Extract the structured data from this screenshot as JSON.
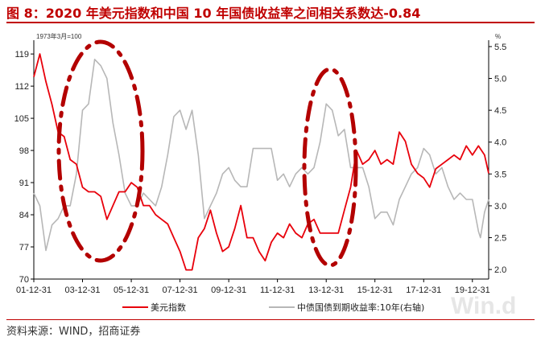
{
  "title": "图 8：2020 年美元指数和中国 10 年国债收益率之间相关系数达-0.84",
  "source": "资料来源：WIND，招商证券",
  "watermark": "Win.d",
  "colors": {
    "title": "#c00000",
    "dxy": "#e8000b",
    "bond": "#b7b7b7",
    "ellipse": "#b30000"
  },
  "chart_data": {
    "type": "line",
    "left_axis": {
      "note": "1973年3月=100",
      "ticks": [
        70,
        77,
        84,
        91,
        98,
        105,
        112,
        119
      ],
      "range": [
        70,
        122
      ]
    },
    "right_axis": {
      "unit": "%",
      "ticks": [
        2.0,
        2.5,
        3.0,
        3.5,
        4.0,
        4.5,
        5.0,
        5.5
      ],
      "range": [
        1.85,
        5.6
      ]
    },
    "x_ticks": [
      "01-12-31",
      "03-12-31",
      "05-12-31",
      "07-12-31",
      "09-12-31",
      "11-12-31",
      "13-12-31",
      "15-12-31",
      "17-12-31",
      "19-12-31"
    ],
    "x_range": [
      "2001-12-31",
      "2020-08-31"
    ],
    "series": [
      {
        "name": "美元指数",
        "axis": "left",
        "points": [
          [
            "2001-12-31",
            114
          ],
          [
            "2002-03-31",
            119
          ],
          [
            "2002-06-30",
            113
          ],
          [
            "2002-09-30",
            108
          ],
          [
            "2002-12-31",
            102
          ],
          [
            "2003-03-31",
            101
          ],
          [
            "2003-06-30",
            96
          ],
          [
            "2003-09-30",
            95
          ],
          [
            "2003-12-31",
            90
          ],
          [
            "2004-03-31",
            89
          ],
          [
            "2004-06-30",
            89
          ],
          [
            "2004-09-30",
            88
          ],
          [
            "2004-12-31",
            83
          ],
          [
            "2005-03-31",
            86
          ],
          [
            "2005-06-30",
            89
          ],
          [
            "2005-09-30",
            89
          ],
          [
            "2005-12-31",
            91
          ],
          [
            "2006-03-31",
            90
          ],
          [
            "2006-06-30",
            86
          ],
          [
            "2006-09-30",
            86
          ],
          [
            "2006-12-31",
            84
          ],
          [
            "2007-03-31",
            83
          ],
          [
            "2007-06-30",
            82
          ],
          [
            "2007-09-30",
            79
          ],
          [
            "2007-12-31",
            76
          ],
          [
            "2008-03-31",
            72
          ],
          [
            "2008-06-30",
            72
          ],
          [
            "2008-09-30",
            79
          ],
          [
            "2008-12-31",
            81
          ],
          [
            "2009-03-31",
            85
          ],
          [
            "2009-06-30",
            80
          ],
          [
            "2009-09-30",
            76
          ],
          [
            "2009-12-31",
            77
          ],
          [
            "2010-03-31",
            81
          ],
          [
            "2010-06-30",
            86
          ],
          [
            "2010-09-30",
            79
          ],
          [
            "2010-12-31",
            79
          ],
          [
            "2011-03-31",
            76
          ],
          [
            "2011-06-30",
            74
          ],
          [
            "2011-09-30",
            78
          ],
          [
            "2011-12-31",
            80
          ],
          [
            "2012-03-31",
            79
          ],
          [
            "2012-06-30",
            82
          ],
          [
            "2012-09-30",
            80
          ],
          [
            "2012-12-31",
            79
          ],
          [
            "2013-03-31",
            82
          ],
          [
            "2013-06-30",
            83
          ],
          [
            "2013-09-30",
            80
          ],
          [
            "2013-12-31",
            80
          ],
          [
            "2014-03-31",
            80
          ],
          [
            "2014-06-30",
            80
          ],
          [
            "2014-09-30",
            85
          ],
          [
            "2014-12-31",
            90
          ],
          [
            "2015-03-31",
            98
          ],
          [
            "2015-06-30",
            95
          ],
          [
            "2015-09-30",
            96
          ],
          [
            "2015-12-31",
            98
          ],
          [
            "2016-03-31",
            95
          ],
          [
            "2016-06-30",
            96
          ],
          [
            "2016-09-30",
            95
          ],
          [
            "2016-12-31",
            102
          ],
          [
            "2017-03-31",
            100
          ],
          [
            "2017-06-30",
            95
          ],
          [
            "2017-09-30",
            93
          ],
          [
            "2017-12-31",
            92
          ],
          [
            "2018-03-31",
            90
          ],
          [
            "2018-06-30",
            94
          ],
          [
            "2018-09-30",
            95
          ],
          [
            "2018-12-31",
            96
          ],
          [
            "2019-03-31",
            97
          ],
          [
            "2019-06-30",
            96
          ],
          [
            "2019-09-30",
            99
          ],
          [
            "2019-12-31",
            97
          ],
          [
            "2020-03-31",
            99
          ],
          [
            "2020-06-30",
            97
          ],
          [
            "2020-08-31",
            93
          ]
        ]
      },
      {
        "name": "中债国债到期收益率:10年(右轴)",
        "axis": "right",
        "points": [
          [
            "2001-12-31",
            3.2
          ],
          [
            "2002-03-31",
            3.0
          ],
          [
            "2002-06-30",
            2.3
          ],
          [
            "2002-09-30",
            2.7
          ],
          [
            "2002-12-31",
            2.8
          ],
          [
            "2003-03-31",
            3.0
          ],
          [
            "2003-06-30",
            3.0
          ],
          [
            "2003-09-30",
            3.5
          ],
          [
            "2003-12-31",
            4.5
          ],
          [
            "2004-03-31",
            4.6
          ],
          [
            "2004-06-30",
            5.3
          ],
          [
            "2004-09-30",
            5.2
          ],
          [
            "2004-12-31",
            5.0
          ],
          [
            "2005-03-31",
            4.3
          ],
          [
            "2005-06-30",
            3.8
          ],
          [
            "2005-09-30",
            3.2
          ],
          [
            "2005-12-31",
            3.0
          ],
          [
            "2006-03-31",
            3.0
          ],
          [
            "2006-06-30",
            3.2
          ],
          [
            "2006-09-30",
            3.1
          ],
          [
            "2006-12-31",
            3.0
          ],
          [
            "2007-03-31",
            3.3
          ],
          [
            "2007-06-30",
            3.8
          ],
          [
            "2007-09-30",
            4.4
          ],
          [
            "2007-12-31",
            4.5
          ],
          [
            "2008-03-31",
            4.2
          ],
          [
            "2008-06-30",
            4.5
          ],
          [
            "2008-09-30",
            3.8
          ],
          [
            "2008-12-31",
            2.8
          ],
          [
            "2009-03-31",
            3.0
          ],
          [
            "2009-06-30",
            3.2
          ],
          [
            "2009-09-30",
            3.5
          ],
          [
            "2009-12-31",
            3.6
          ],
          [
            "2010-03-31",
            3.4
          ],
          [
            "2010-06-30",
            3.3
          ],
          [
            "2010-09-30",
            3.3
          ],
          [
            "2010-12-31",
            3.9
          ],
          [
            "2011-03-31",
            3.9
          ],
          [
            "2011-06-30",
            3.9
          ],
          [
            "2011-09-30",
            3.9
          ],
          [
            "2011-12-31",
            3.4
          ],
          [
            "2012-03-31",
            3.5
          ],
          [
            "2012-06-30",
            3.3
          ],
          [
            "2012-09-30",
            3.5
          ],
          [
            "2012-12-31",
            3.6
          ],
          [
            "2013-03-31",
            3.5
          ],
          [
            "2013-06-30",
            3.6
          ],
          [
            "2013-09-30",
            4.0
          ],
          [
            "2013-12-31",
            4.6
          ],
          [
            "2014-03-31",
            4.5
          ],
          [
            "2014-06-30",
            4.1
          ],
          [
            "2014-09-30",
            4.2
          ],
          [
            "2014-12-31",
            3.6
          ],
          [
            "2015-03-31",
            3.6
          ],
          [
            "2015-06-30",
            3.6
          ],
          [
            "2015-09-30",
            3.3
          ],
          [
            "2015-12-31",
            2.8
          ],
          [
            "2016-03-31",
            2.9
          ],
          [
            "2016-06-30",
            2.9
          ],
          [
            "2016-09-30",
            2.7
          ],
          [
            "2016-12-31",
            3.1
          ],
          [
            "2017-03-31",
            3.3
          ],
          [
            "2017-06-30",
            3.5
          ],
          [
            "2017-09-30",
            3.6
          ],
          [
            "2017-12-31",
            3.9
          ],
          [
            "2018-03-31",
            3.8
          ],
          [
            "2018-06-30",
            3.5
          ],
          [
            "2018-09-30",
            3.6
          ],
          [
            "2018-12-31",
            3.3
          ],
          [
            "2019-03-31",
            3.1
          ],
          [
            "2019-06-30",
            3.2
          ],
          [
            "2019-09-30",
            3.1
          ],
          [
            "2019-12-31",
            3.1
          ],
          [
            "2020-03-31",
            2.6
          ],
          [
            "2020-04-30",
            2.5
          ],
          [
            "2020-06-30",
            2.9
          ],
          [
            "2020-08-31",
            3.1
          ]
        ]
      }
    ],
    "legend": {
      "position": "bottom"
    },
    "grid": false
  }
}
